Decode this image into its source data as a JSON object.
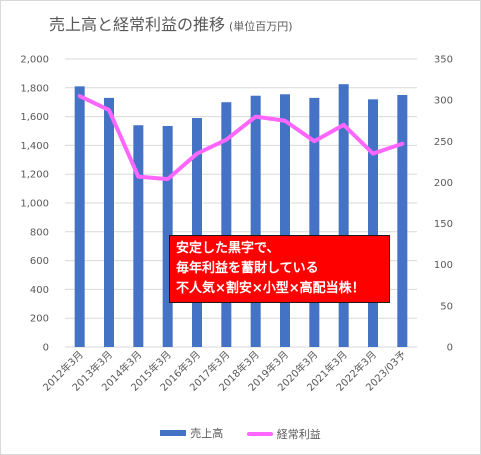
{
  "chart_data": {
    "type": "bar",
    "title": "売上高と経常利益の推移",
    "subtitle": "(単位百万円)",
    "categories": [
      "2012年3月",
      "2013年3月",
      "2014年3月",
      "2015年3月",
      "2016年3月",
      "2017年3月",
      "2018年3月",
      "2019年3月",
      "2020年3月",
      "2021年3月",
      "2022年3月",
      "2023/03予"
    ],
    "series": [
      {
        "name": "売上高",
        "type": "bar",
        "axis": "left",
        "color": "#4472c4",
        "values": [
          1810,
          1730,
          1540,
          1535,
          1590,
          1700,
          1745,
          1755,
          1730,
          1825,
          1720,
          1750
        ]
      },
      {
        "name": "経常利益",
        "type": "line",
        "axis": "right",
        "color": "#ff66ff",
        "values": [
          305,
          288,
          207,
          204,
          235,
          252,
          280,
          275,
          250,
          270,
          235,
          247
        ]
      }
    ],
    "left_axis": {
      "ylim": [
        0,
        2000
      ],
      "ticks": [
        "0",
        "200",
        "400",
        "600",
        "800",
        "1,000",
        "1,200",
        "1,400",
        "1,600",
        "1,800",
        "2,000"
      ]
    },
    "right_axis": {
      "ylim": [
        0,
        350
      ],
      "ticks": [
        "0",
        "50",
        "100",
        "150",
        "200",
        "250",
        "300",
        "350"
      ]
    },
    "grid": true,
    "legend": "bottom",
    "annotation": [
      "安定した黒字で、",
      "毎年利益を蓄財している",
      "不人気×割安×小型×高配当株！"
    ],
    "annotation_color": "#ff0000"
  }
}
